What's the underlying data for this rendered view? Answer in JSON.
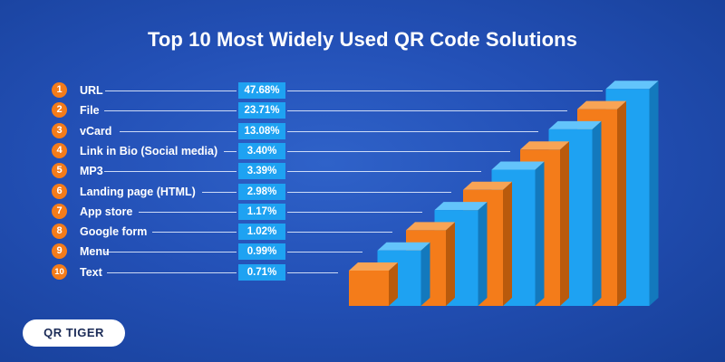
{
  "chart_data": {
    "type": "bar",
    "title": "Top 10 Most Widely Used QR Code Solutions",
    "categories": [
      "URL",
      "File",
      "vCard",
      "Link in Bio (Social media)",
      "MP3",
      "Landing page (HTML)",
      "App store",
      "Google form",
      "Menu",
      "Text"
    ],
    "ranks": [
      "1",
      "2",
      "3",
      "4",
      "5",
      "6",
      "7",
      "8",
      "9",
      "10"
    ],
    "values": [
      47.68,
      23.71,
      13.08,
      3.4,
      3.39,
      2.98,
      1.17,
      1.02,
      0.99,
      0.71
    ],
    "value_labels": [
      "47.68%",
      "23.71%",
      "13.08%",
      "3.40%",
      "3.39%",
      "2.98%",
      "1.17%",
      "1.02%",
      "0.99%",
      "0.71%"
    ],
    "unit": "%",
    "legend": "none",
    "grid": false
  },
  "colors": {
    "background": "#2350b6",
    "accent_orange": "#f47c1a",
    "accent_blue": "#1ea2f2",
    "text": "#ffffff"
  },
  "logo": {
    "text": "QR TIGER"
  }
}
